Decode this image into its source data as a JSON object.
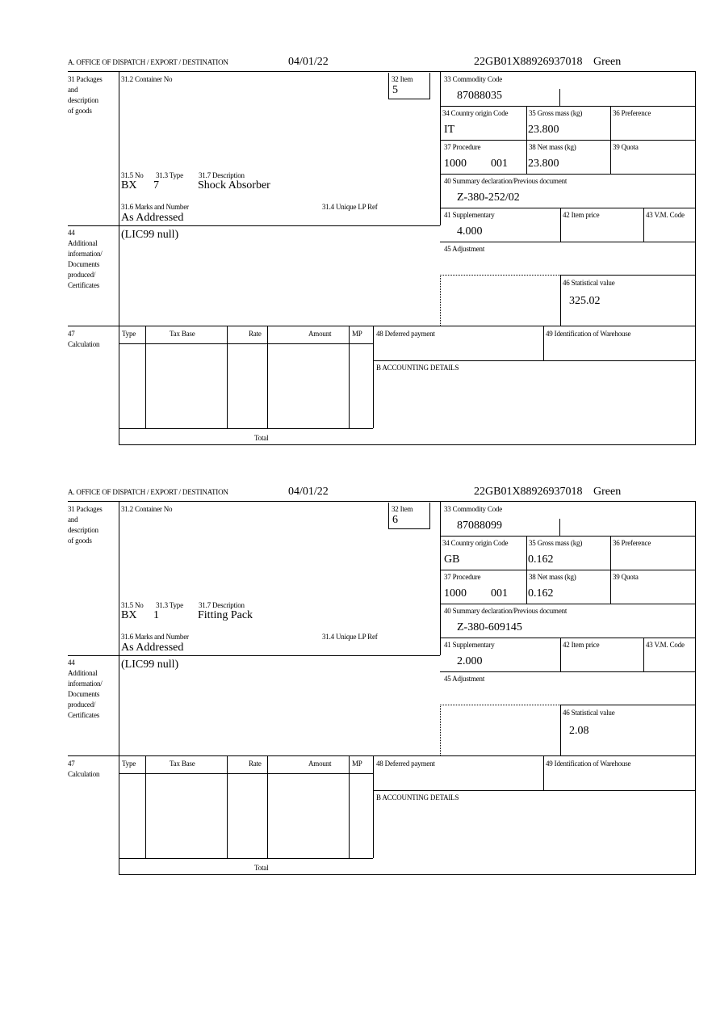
{
  "labels": {
    "header": "A.  OFFICE OF DISPATCH / EXPORT / DESTINATION",
    "box31": [
      "31 Packages",
      "and",
      "description",
      "of goods"
    ],
    "container_no": "31.2 Container No",
    "item": "32 Item",
    "no": "31.5 No",
    "type": "31.3 Type",
    "description": "31.7 Description",
    "marks": "31.6 Marks and Number",
    "unique_lp_ref": "31.4 Unique LP Ref",
    "box44": [
      "44",
      "Additional",
      "information/",
      "Documents",
      "produced/",
      "Certificates"
    ],
    "commodity_code": "33 Commodity Code",
    "country_origin": "34 Country origin Code",
    "gross_mass": "35 Gross mass (kg)",
    "preference": "36 Preference",
    "procedure": "37 Procedure",
    "net_mass": "38 Net mass (kg)",
    "quota": "39 Quota",
    "summary_declaration": "40 Summary declaration/Previous document",
    "supplementary": "41 Supplementary",
    "item_price": "42 Item price",
    "vm_code": "43 V.M. Code",
    "adjustment": "45 Adjustment",
    "statistical_value": "46 Statistical value",
    "box47": [
      "47",
      "Calculation"
    ],
    "calc_headers": [
      "Type",
      "Tax Base",
      "Rate",
      "Amount",
      "MP"
    ],
    "deferred_payment": "48 Deferred payment",
    "warehouse": "49 Identification of Warehouse",
    "accounting": "B ACCOUNTING DETAILS",
    "total": "Total"
  },
  "forms": [
    {
      "date": "04/01/22",
      "reference": "22GB01X88926937018",
      "route": "Green",
      "item": "5",
      "package_kind": "BX",
      "package_count": "7",
      "description": "Shock Absorber",
      "marks": "As Addressed",
      "additional_info": "(LIC99 null)",
      "commodity_code": "87088035",
      "country_origin": "IT",
      "gross_mass": "23.800",
      "procedure": "1000",
      "procedure_additional": "001",
      "net_mass": "23.800",
      "summary_declaration": "Z-380-252/02",
      "supplementary": "4.000",
      "statistical_value": "325.02"
    },
    {
      "date": "04/01/22",
      "reference": "22GB01X88926937018",
      "route": "Green",
      "item": "6",
      "package_kind": "BX",
      "package_count": "1",
      "description": "Fitting Pack",
      "marks": "As Addressed",
      "additional_info": "(LIC99 null)",
      "commodity_code": "87088099",
      "country_origin": "GB",
      "gross_mass": "0.162",
      "procedure": "1000",
      "procedure_additional": "001",
      "net_mass": "0.162",
      "summary_declaration": "Z-380-609145",
      "supplementary": "2.000",
      "statistical_value": "2.08"
    }
  ]
}
